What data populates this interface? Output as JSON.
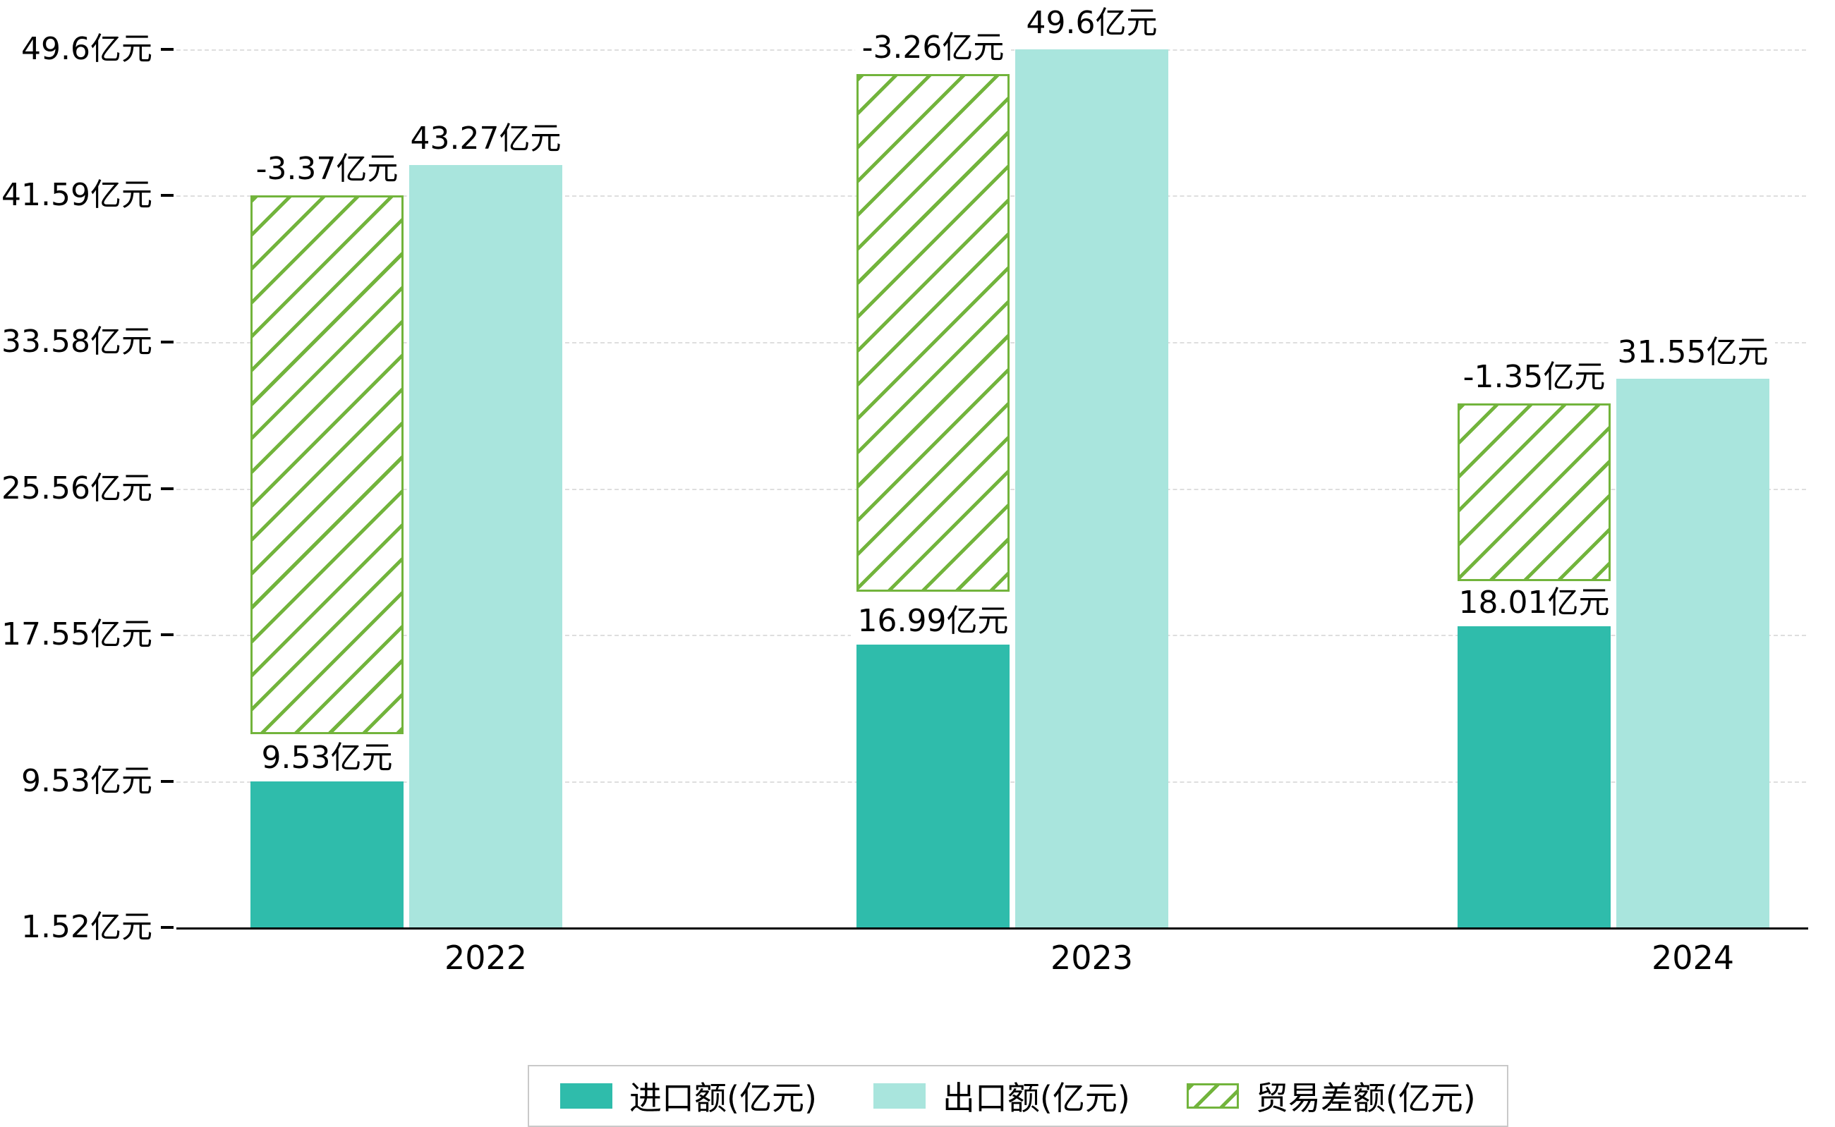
{
  "chart_data": {
    "type": "bar",
    "title": "",
    "unit": "亿元",
    "categories": [
      "2022",
      "2023",
      "2024"
    ],
    "series": [
      {
        "name": "进口额(亿元)",
        "style": "solid",
        "color_key": "import",
        "values": [
          9.53,
          16.99,
          18.01
        ],
        "labels": [
          "9.53亿元",
          "16.99亿元",
          "18.01亿元"
        ]
      },
      {
        "name": "出口额(亿元)",
        "style": "solid",
        "color_key": "export",
        "values": [
          43.27,
          49.6,
          31.55
        ],
        "labels": [
          "43.27亿元",
          "49.6亿元",
          "31.55亿元"
        ]
      },
      {
        "name": "贸易差额(亿元)",
        "style": "hatch",
        "color_key": "balance",
        "values": [
          -3.37,
          -3.26,
          -1.35
        ],
        "labels": [
          "-3.37亿元",
          "-3.26亿元",
          "-1.35亿元"
        ],
        "bar_spans": [
          [
            12.1,
            41.6
          ],
          [
            19.9,
            48.25
          ],
          [
            20.5,
            30.2
          ]
        ]
      }
    ],
    "y_axis": {
      "min": 1.52,
      "max": 49.6,
      "ticks": [
        {
          "value": 1.52,
          "label": "1.52亿元"
        },
        {
          "value": 9.53,
          "label": "9.53亿元"
        },
        {
          "value": 17.55,
          "label": "17.55亿元"
        },
        {
          "value": 25.56,
          "label": "25.56亿元"
        },
        {
          "value": 33.58,
          "label": "33.58亿元"
        },
        {
          "value": 41.59,
          "label": "41.59亿元"
        },
        {
          "value": 49.6,
          "label": "49.6亿元"
        }
      ]
    },
    "legend": {
      "items": [
        "进口额(亿元)",
        "出口额(亿元)",
        "贸易差额(亿元)"
      ],
      "position": "bottom"
    },
    "grid": "horizontal-dashed",
    "colors": {
      "import": "#2fbcab",
      "export": "#a9e5dd",
      "balance": "#72b43c",
      "grid": "#dedede",
      "axis": "#000000",
      "text": "#000000",
      "background": "#ffffff"
    }
  }
}
